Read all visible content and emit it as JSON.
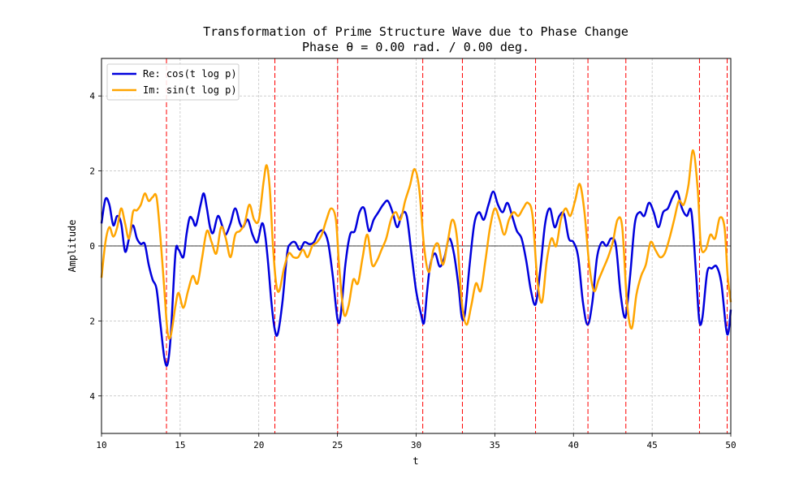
{
  "chart_data": {
    "type": "line",
    "title": "Transformation of Prime Structure Wave due to Phase Change",
    "subtitle": "Phase θ = 0.00 rad. / 0.00 deg.",
    "xlabel": "t",
    "ylabel": "Amplitude",
    "xlim": [
      10,
      50
    ],
    "ylim": [
      -5,
      5
    ],
    "x_ticks": [
      "10",
      "15",
      "20",
      "25",
      "30",
      "35",
      "40",
      "45",
      "50"
    ],
    "y_ticks": [
      {
        "value": 4,
        "label": "4"
      },
      {
        "value": 2,
        "label": "2"
      },
      {
        "value": 0,
        "label": "0"
      },
      {
        "value": -2,
        "label": "2"
      },
      {
        "value": -4,
        "label": "4"
      }
    ],
    "grid": true,
    "legend_position": "upper-left",
    "zero_line_color": "#000000",
    "zeros_marker_color": "#ff0000",
    "vertical_markers": [
      14.13,
      21.02,
      25.01,
      30.42,
      32.94,
      37.59,
      40.92,
      43.33,
      48.01,
      49.77
    ],
    "series": [
      {
        "name": "Re: cos(t log p)",
        "color": "#0000dd",
        "points": [
          [
            10.0,
            0.6
          ],
          [
            10.25,
            1.25
          ],
          [
            10.5,
            1.1
          ],
          [
            10.75,
            0.55
          ],
          [
            11.0,
            0.8
          ],
          [
            11.25,
            0.6
          ],
          [
            11.5,
            -0.15
          ],
          [
            11.75,
            0.2
          ],
          [
            12.0,
            0.55
          ],
          [
            12.25,
            0.2
          ],
          [
            12.5,
            0.05
          ],
          [
            12.75,
            0.05
          ],
          [
            13.0,
            -0.5
          ],
          [
            13.25,
            -0.9
          ],
          [
            13.5,
            -1.15
          ],
          [
            13.75,
            -2.1
          ],
          [
            14.0,
            -3.0
          ],
          [
            14.2,
            -3.15
          ],
          [
            14.4,
            -2.4
          ],
          [
            14.7,
            -0.2
          ],
          [
            14.9,
            -0.1
          ],
          [
            15.2,
            -0.3
          ],
          [
            15.4,
            0.3
          ],
          [
            15.6,
            0.75
          ],
          [
            15.8,
            0.7
          ],
          [
            16.0,
            0.55
          ],
          [
            16.3,
            1.1
          ],
          [
            16.5,
            1.4
          ],
          [
            16.7,
            1.0
          ],
          [
            16.9,
            0.5
          ],
          [
            17.1,
            0.35
          ],
          [
            17.4,
            0.8
          ],
          [
            17.7,
            0.5
          ],
          [
            17.9,
            0.3
          ],
          [
            18.2,
            0.6
          ],
          [
            18.5,
            1.0
          ],
          [
            18.8,
            0.6
          ],
          [
            19.0,
            0.5
          ],
          [
            19.3,
            0.7
          ],
          [
            19.6,
            0.3
          ],
          [
            19.9,
            0.1
          ],
          [
            20.2,
            0.6
          ],
          [
            20.4,
            0.3
          ],
          [
            20.6,
            -0.5
          ],
          [
            20.8,
            -1.5
          ],
          [
            21.0,
            -2.2
          ],
          [
            21.2,
            -2.35
          ],
          [
            21.5,
            -1.5
          ],
          [
            21.8,
            -0.2
          ],
          [
            22.0,
            0.05
          ],
          [
            22.3,
            0.1
          ],
          [
            22.6,
            -0.1
          ],
          [
            22.9,
            0.1
          ],
          [
            23.2,
            0.05
          ],
          [
            23.5,
            0.1
          ],
          [
            23.8,
            0.35
          ],
          [
            24.1,
            0.4
          ],
          [
            24.4,
            0.1
          ],
          [
            24.7,
            -0.8
          ],
          [
            25.0,
            -1.95
          ],
          [
            25.2,
            -1.85
          ],
          [
            25.5,
            -0.5
          ],
          [
            25.8,
            0.3
          ],
          [
            26.1,
            0.4
          ],
          [
            26.4,
            0.9
          ],
          [
            26.7,
            1.0
          ],
          [
            27.0,
            0.4
          ],
          [
            27.3,
            0.7
          ],
          [
            27.6,
            0.9
          ],
          [
            27.9,
            1.1
          ],
          [
            28.2,
            1.2
          ],
          [
            28.5,
            0.9
          ],
          [
            28.8,
            0.5
          ],
          [
            29.1,
            0.85
          ],
          [
            29.4,
            0.8
          ],
          [
            29.7,
            -0.2
          ],
          [
            30.0,
            -1.2
          ],
          [
            30.3,
            -1.8
          ],
          [
            30.5,
            -2.05
          ],
          [
            30.7,
            -1.2
          ],
          [
            30.9,
            -0.5
          ],
          [
            31.2,
            -0.2
          ],
          [
            31.5,
            -0.55
          ],
          [
            31.8,
            -0.3
          ],
          [
            32.1,
            0.2
          ],
          [
            32.4,
            -0.2
          ],
          [
            32.7,
            -1.1
          ],
          [
            32.9,
            -1.9
          ],
          [
            33.1,
            -1.8
          ],
          [
            33.4,
            -0.5
          ],
          [
            33.7,
            0.6
          ],
          [
            34.0,
            0.9
          ],
          [
            34.3,
            0.7
          ],
          [
            34.6,
            1.1
          ],
          [
            34.9,
            1.45
          ],
          [
            35.2,
            1.1
          ],
          [
            35.5,
            0.9
          ],
          [
            35.8,
            1.15
          ],
          [
            36.1,
            0.8
          ],
          [
            36.4,
            0.4
          ],
          [
            36.7,
            0.2
          ],
          [
            37.0,
            -0.4
          ],
          [
            37.3,
            -1.2
          ],
          [
            37.6,
            -1.55
          ],
          [
            37.9,
            -0.6
          ],
          [
            38.2,
            0.6
          ],
          [
            38.5,
            1.0
          ],
          [
            38.8,
            0.5
          ],
          [
            39.1,
            0.8
          ],
          [
            39.4,
            0.85
          ],
          [
            39.7,
            0.2
          ],
          [
            40.0,
            0.1
          ],
          [
            40.3,
            -0.3
          ],
          [
            40.6,
            -1.5
          ],
          [
            40.9,
            -2.1
          ],
          [
            41.2,
            -1.5
          ],
          [
            41.5,
            -0.3
          ],
          [
            41.8,
            0.1
          ],
          [
            42.1,
            0.0
          ],
          [
            42.4,
            0.2
          ],
          [
            42.7,
            0.0
          ],
          [
            43.0,
            -1.3
          ],
          [
            43.3,
            -1.9
          ],
          [
            43.6,
            -0.8
          ],
          [
            43.9,
            0.6
          ],
          [
            44.2,
            0.9
          ],
          [
            44.5,
            0.8
          ],
          [
            44.8,
            1.15
          ],
          [
            45.1,
            0.9
          ],
          [
            45.4,
            0.5
          ],
          [
            45.7,
            0.9
          ],
          [
            46.0,
            1.0
          ],
          [
            46.3,
            1.3
          ],
          [
            46.6,
            1.45
          ],
          [
            46.9,
            1.0
          ],
          [
            47.2,
            0.8
          ],
          [
            47.5,
            0.9
          ],
          [
            47.8,
            -0.8
          ],
          [
            48.0,
            -2.0
          ],
          [
            48.2,
            -1.9
          ],
          [
            48.5,
            -0.7
          ],
          [
            48.8,
            -0.6
          ],
          [
            49.1,
            -0.55
          ],
          [
            49.4,
            -1.0
          ],
          [
            49.7,
            -2.2
          ],
          [
            49.85,
            -2.3
          ],
          [
            50.0,
            -1.7
          ]
        ]
      },
      {
        "name": "Im: sin(t log p)",
        "color": "#ffa500",
        "points": [
          [
            10.0,
            -0.85
          ],
          [
            10.25,
            0.1
          ],
          [
            10.5,
            0.5
          ],
          [
            10.75,
            0.25
          ],
          [
            11.0,
            0.5
          ],
          [
            11.25,
            1.0
          ],
          [
            11.5,
            0.6
          ],
          [
            11.75,
            0.2
          ],
          [
            12.0,
            0.9
          ],
          [
            12.25,
            0.95
          ],
          [
            12.5,
            1.1
          ],
          [
            12.75,
            1.4
          ],
          [
            13.0,
            1.2
          ],
          [
            13.25,
            1.3
          ],
          [
            13.5,
            1.3
          ],
          [
            13.75,
            0.2
          ],
          [
            14.0,
            -1.2
          ],
          [
            14.2,
            -2.3
          ],
          [
            14.4,
            -2.4
          ],
          [
            14.7,
            -1.6
          ],
          [
            14.9,
            -1.25
          ],
          [
            15.2,
            -1.65
          ],
          [
            15.5,
            -1.2
          ],
          [
            15.8,
            -0.8
          ],
          [
            16.1,
            -1.0
          ],
          [
            16.4,
            -0.3
          ],
          [
            16.7,
            0.4
          ],
          [
            17.0,
            0.1
          ],
          [
            17.3,
            -0.2
          ],
          [
            17.6,
            0.5
          ],
          [
            17.9,
            0.2
          ],
          [
            18.2,
            -0.3
          ],
          [
            18.5,
            0.3
          ],
          [
            18.8,
            0.4
          ],
          [
            19.1,
            0.6
          ],
          [
            19.4,
            1.1
          ],
          [
            19.7,
            0.7
          ],
          [
            20.0,
            0.7
          ],
          [
            20.3,
            1.7
          ],
          [
            20.5,
            2.15
          ],
          [
            20.7,
            1.5
          ],
          [
            20.9,
            0.0
          ],
          [
            21.1,
            -1.0
          ],
          [
            21.3,
            -1.2
          ],
          [
            21.6,
            -0.6
          ],
          [
            21.9,
            -0.2
          ],
          [
            22.2,
            -0.3
          ],
          [
            22.5,
            -0.3
          ],
          [
            22.8,
            -0.1
          ],
          [
            23.1,
            -0.3
          ],
          [
            23.4,
            0.0
          ],
          [
            23.7,
            0.1
          ],
          [
            24.0,
            0.3
          ],
          [
            24.3,
            0.7
          ],
          [
            24.6,
            1.0
          ],
          [
            24.9,
            0.7
          ],
          [
            25.1,
            -0.5
          ],
          [
            25.4,
            -1.8
          ],
          [
            25.7,
            -1.6
          ],
          [
            26.0,
            -0.9
          ],
          [
            26.3,
            -1.0
          ],
          [
            26.6,
            -0.3
          ],
          [
            26.9,
            0.3
          ],
          [
            27.2,
            -0.5
          ],
          [
            27.5,
            -0.4
          ],
          [
            27.8,
            -0.1
          ],
          [
            28.1,
            0.2
          ],
          [
            28.4,
            0.7
          ],
          [
            28.7,
            0.9
          ],
          [
            29.0,
            0.7
          ],
          [
            29.3,
            1.2
          ],
          [
            29.6,
            1.6
          ],
          [
            29.9,
            2.05
          ],
          [
            30.2,
            1.5
          ],
          [
            30.5,
            0.0
          ],
          [
            30.8,
            -0.7
          ],
          [
            31.1,
            -0.1
          ],
          [
            31.4,
            0.05
          ],
          [
            31.7,
            -0.5
          ],
          [
            32.0,
            0.1
          ],
          [
            32.3,
            0.7
          ],
          [
            32.6,
            0.2
          ],
          [
            32.9,
            -1.5
          ],
          [
            33.2,
            -2.1
          ],
          [
            33.5,
            -1.6
          ],
          [
            33.8,
            -1.0
          ],
          [
            34.1,
            -1.2
          ],
          [
            34.4,
            -0.4
          ],
          [
            34.7,
            0.5
          ],
          [
            35.0,
            1.0
          ],
          [
            35.3,
            0.7
          ],
          [
            35.6,
            0.3
          ],
          [
            35.9,
            0.7
          ],
          [
            36.2,
            0.9
          ],
          [
            36.5,
            0.8
          ],
          [
            36.8,
            1.0
          ],
          [
            37.1,
            1.15
          ],
          [
            37.4,
            0.8
          ],
          [
            37.7,
            -0.9
          ],
          [
            38.0,
            -1.5
          ],
          [
            38.3,
            -0.4
          ],
          [
            38.6,
            0.2
          ],
          [
            38.9,
            0.0
          ],
          [
            39.2,
            0.7
          ],
          [
            39.5,
            1.0
          ],
          [
            39.8,
            0.8
          ],
          [
            40.1,
            1.2
          ],
          [
            40.4,
            1.65
          ],
          [
            40.7,
            0.9
          ],
          [
            41.0,
            -0.5
          ],
          [
            41.3,
            -1.2
          ],
          [
            41.6,
            -0.9
          ],
          [
            41.9,
            -0.6
          ],
          [
            42.2,
            -0.3
          ],
          [
            42.5,
            0.1
          ],
          [
            42.8,
            0.7
          ],
          [
            43.1,
            0.5
          ],
          [
            43.4,
            -1.5
          ],
          [
            43.7,
            -2.2
          ],
          [
            44.0,
            -1.3
          ],
          [
            44.3,
            -0.8
          ],
          [
            44.6,
            -0.5
          ],
          [
            44.9,
            0.1
          ],
          [
            45.2,
            -0.1
          ],
          [
            45.5,
            -0.3
          ],
          [
            45.8,
            -0.2
          ],
          [
            46.1,
            0.2
          ],
          [
            46.4,
            0.7
          ],
          [
            46.7,
            1.2
          ],
          [
            47.0,
            1.1
          ],
          [
            47.3,
            1.6
          ],
          [
            47.6,
            2.55
          ],
          [
            47.9,
            1.5
          ],
          [
            48.1,
            0.0
          ],
          [
            48.4,
            -0.1
          ],
          [
            48.7,
            0.3
          ],
          [
            49.0,
            0.2
          ],
          [
            49.3,
            0.75
          ],
          [
            49.6,
            0.5
          ],
          [
            49.8,
            -0.8
          ],
          [
            50.0,
            -1.5
          ]
        ]
      }
    ]
  }
}
